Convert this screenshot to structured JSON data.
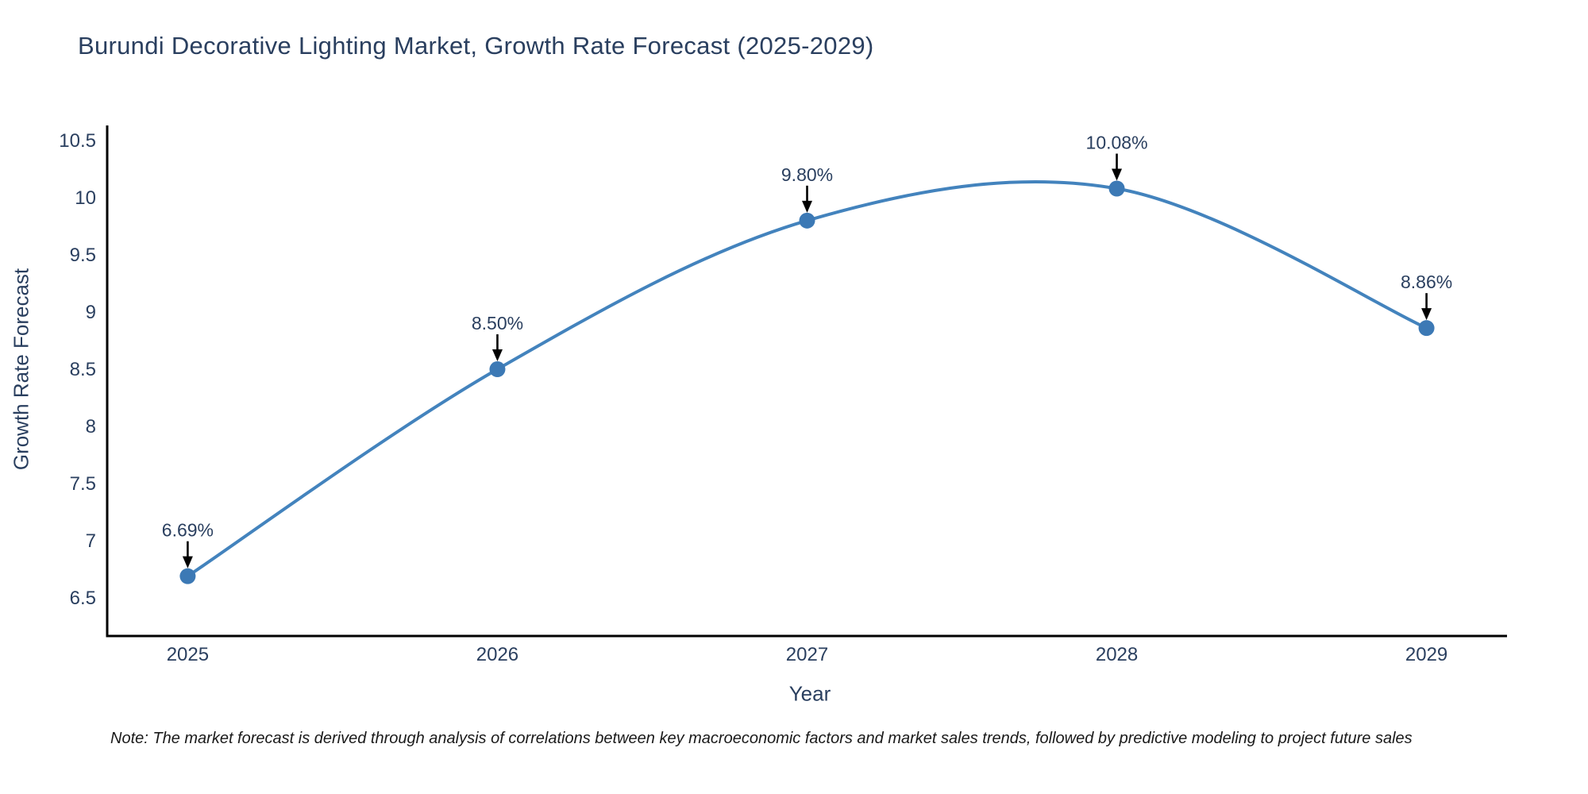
{
  "chart_data": {
    "type": "line",
    "title": "Burundi Decorative Lighting Market, Growth Rate Forecast (2025-2029)",
    "xlabel": "Year",
    "ylabel": "Growth Rate Forecast",
    "categories": [
      2025,
      2026,
      2027,
      2028,
      2029
    ],
    "series": [
      {
        "name": "Growth Rate Forecast",
        "values": [
          6.69,
          8.5,
          9.8,
          10.08,
          8.86
        ]
      }
    ],
    "point_labels": [
      "6.69%",
      "8.50%",
      "9.80%",
      "10.08%",
      "8.86%"
    ],
    "xtick_labels": [
      "2025",
      "2026",
      "2027",
      "2028",
      "2029"
    ],
    "ytick_values": [
      6.5,
      7,
      7.5,
      8,
      8.5,
      9,
      9.5,
      10,
      10.5
    ],
    "ytick_labels": [
      "6.5",
      "7",
      "7.5",
      "8",
      "8.5",
      "9",
      "9.5",
      "10",
      "10.5"
    ],
    "xlim": [
      2024.74,
      2029.26
    ],
    "ylim": [
      6.167,
      10.632
    ],
    "grid": false,
    "legend": "none",
    "line_shape": "spline",
    "colors": {
      "line": "#4383bd",
      "marker": "#3c79b5",
      "axis": "#000000",
      "text": "#2a3f5f",
      "annotation": "#2a3f5f",
      "arrow": "#000000",
      "note": "#1a1a1a",
      "background": "#ffffff"
    },
    "note": "Note: The market forecast is derived through analysis of correlations between key macroeconomic factors and market sales trends, followed by predictive modeling to project future sales"
  }
}
